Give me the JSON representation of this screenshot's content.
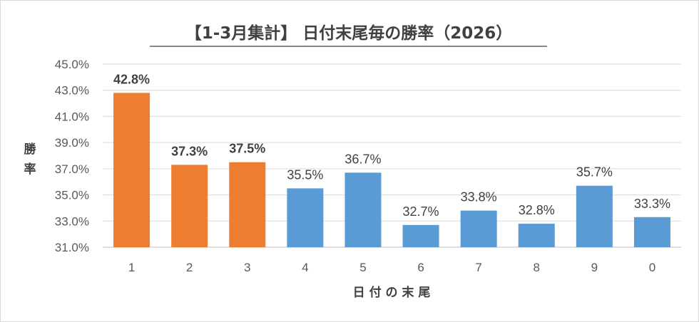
{
  "chart_data": {
    "type": "bar",
    "title": "【1-3月集計】 日付末尾毎の勝率（2026）",
    "xlabel": "日 付 の 末 尾",
    "ylabel": "勝 率",
    "categories": [
      "1",
      "2",
      "3",
      "4",
      "5",
      "6",
      "7",
      "8",
      "9",
      "0"
    ],
    "values": [
      42.8,
      37.3,
      37.5,
      35.5,
      36.7,
      32.7,
      33.8,
      32.8,
      35.7,
      33.3
    ],
    "data_labels": [
      "42.8%",
      "37.3%",
      "37.5%",
      "35.5%",
      "36.7%",
      "32.7%",
      "33.8%",
      "32.8%",
      "35.7%",
      "33.3%"
    ],
    "highlight": [
      true,
      true,
      true,
      false,
      false,
      false,
      false,
      false,
      false,
      false
    ],
    "ylim": [
      31.0,
      45.0
    ],
    "yticks": [
      31.0,
      33.0,
      35.0,
      37.0,
      39.0,
      41.0,
      43.0,
      45.0
    ],
    "ytick_labels": [
      "31.0%",
      "33.0%",
      "35.0%",
      "37.0%",
      "39.0%",
      "41.0%",
      "43.0%",
      "45.0%"
    ],
    "grid": true,
    "legend": "none",
    "colors": {
      "highlight": "#ed7d31",
      "normal": "#5b9bd5",
      "grid": "#d9d9d9",
      "text": "#404040"
    }
  }
}
